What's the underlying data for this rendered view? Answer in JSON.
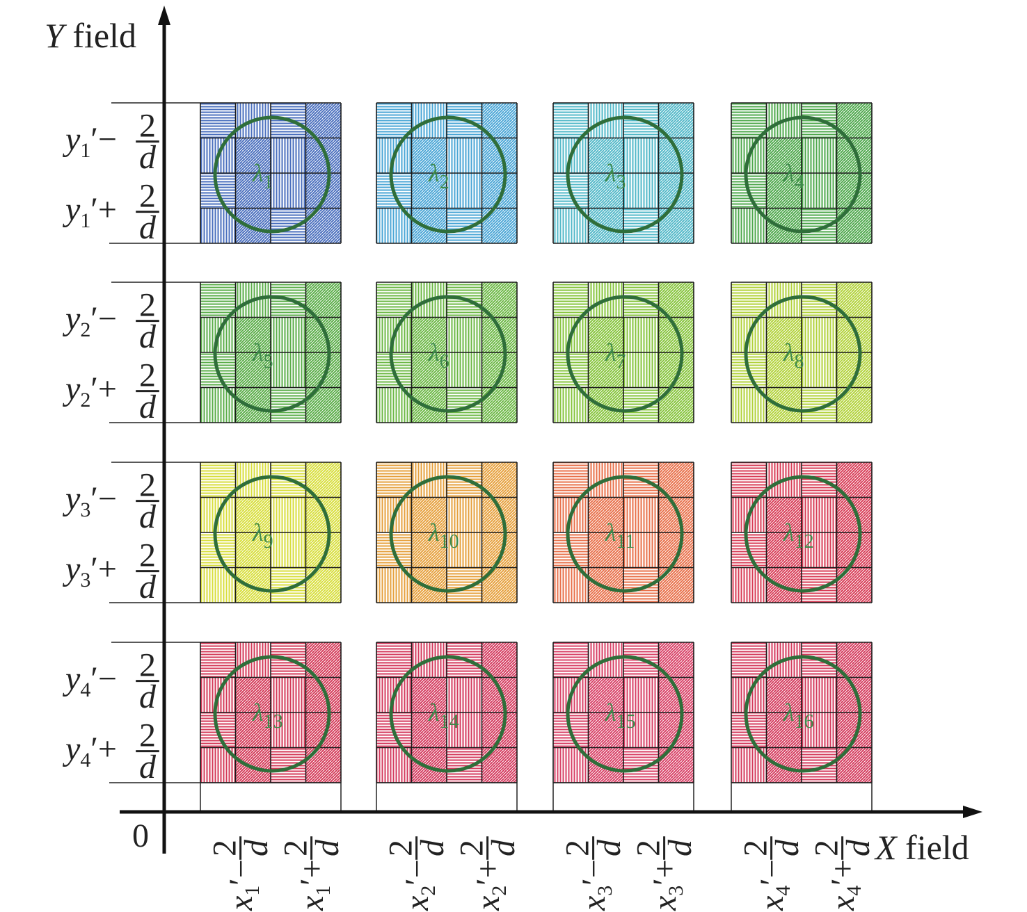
{
  "axes": {
    "y_title": {
      "var": "Y",
      "rest": " field"
    },
    "x_title": {
      "var": "X",
      "rest": " field"
    },
    "origin": "0"
  },
  "y_labels": [
    {
      "var": "y",
      "sub": "1"
    },
    {
      "var": "y",
      "sub": "2"
    },
    {
      "var": "y",
      "sub": "3"
    },
    {
      "var": "y",
      "sub": "4"
    }
  ],
  "x_labels": [
    {
      "var": "x",
      "sub": "1"
    },
    {
      "var": "x",
      "sub": "2"
    },
    {
      "var": "x",
      "sub": "3"
    },
    {
      "var": "x",
      "sub": "4"
    }
  ],
  "fraction": {
    "num": "2",
    "den": "d"
  },
  "prime": "′",
  "minus": "−",
  "plus": "+",
  "cells": [
    {
      "sym": "λ",
      "sub": "1",
      "color": "#4a6fbe"
    },
    {
      "sym": "λ",
      "sub": "2",
      "color": "#4aa6d6"
    },
    {
      "sym": "λ",
      "sub": "3",
      "color": "#52b8c8"
    },
    {
      "sym": "λ",
      "sub": "4",
      "color": "#4ea84c"
    },
    {
      "sym": "λ",
      "sub": "5",
      "color": "#5aad48"
    },
    {
      "sym": "λ",
      "sub": "6",
      "color": "#6cb845"
    },
    {
      "sym": "λ",
      "sub": "7",
      "color": "#86c43c"
    },
    {
      "sym": "λ",
      "sub": "8",
      "color": "#b2d23a"
    },
    {
      "sym": "λ",
      "sub": "9",
      "color": "#d8de3c"
    },
    {
      "sym": "λ",
      "sub": "10",
      "color": "#e6a03c"
    },
    {
      "sym": "λ",
      "sub": "11",
      "color": "#e8704a"
    },
    {
      "sym": "λ",
      "sub": "12",
      "color": "#d83c56"
    },
    {
      "sym": "λ",
      "sub": "13",
      "color": "#d43a58"
    },
    {
      "sym": "λ",
      "sub": "14",
      "color": "#d43a5e"
    },
    {
      "sym": "λ",
      "sub": "15",
      "color": "#d84066"
    },
    {
      "sym": "λ",
      "sub": "16",
      "color": "#d43a5c"
    }
  ],
  "circle_color": "#2f6e3a"
}
